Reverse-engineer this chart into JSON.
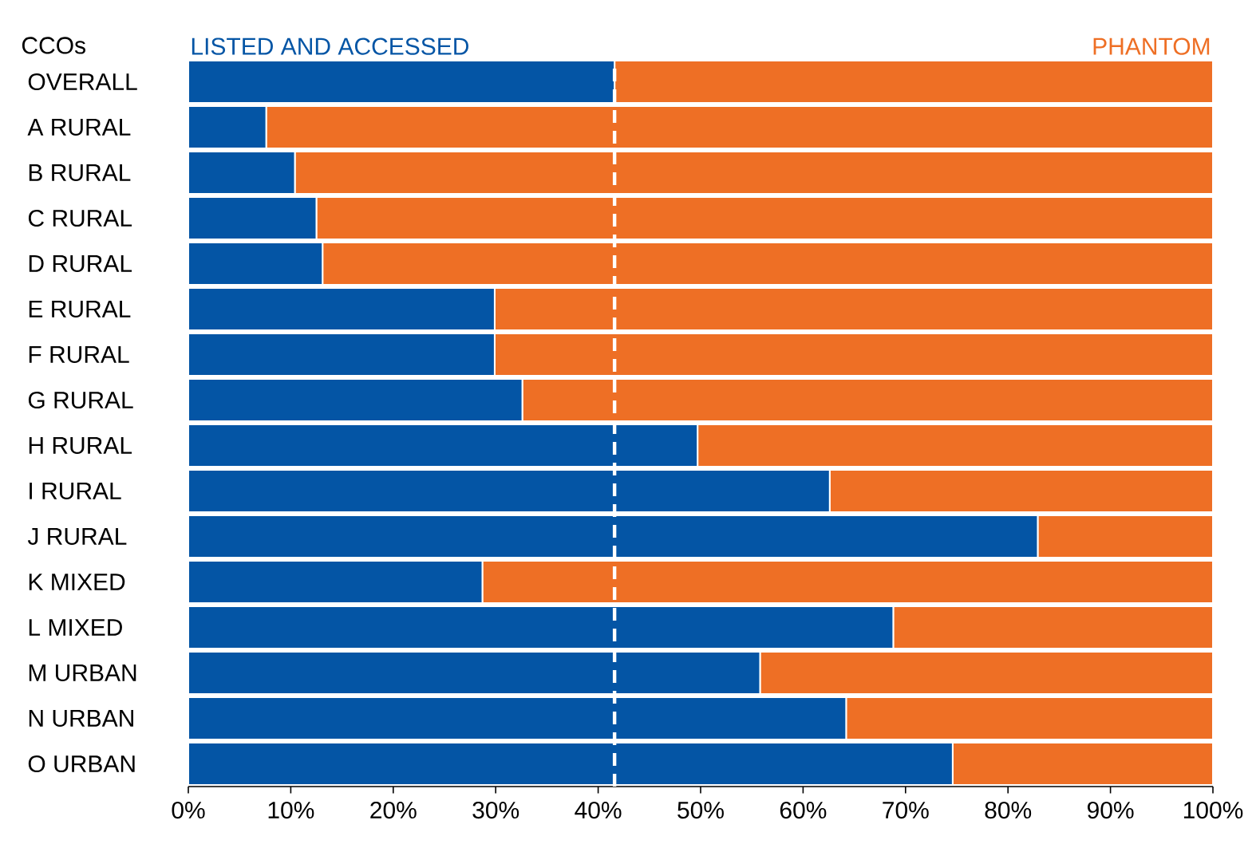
{
  "chart_data": {
    "type": "bar",
    "orientation": "horizontal",
    "stacked": true,
    "ylabel": "CCOs",
    "categories": [
      "OVERALL",
      "A RURAL",
      "B RURAL",
      "C RURAL",
      "D RURAL",
      "E RURAL",
      "F RURAL",
      "G RURAL",
      "H RURAL",
      "I RURAL",
      "J RURAL",
      "K MIXED",
      "L MIXED",
      "M URBAN",
      "N URBAN",
      "O URBAN"
    ],
    "series": [
      {
        "name": "LISTED AND ACCESSED",
        "color": "#0455a5",
        "values": [
          41.6,
          7.6,
          10.4,
          12.5,
          13.1,
          29.9,
          29.9,
          32.6,
          49.7,
          62.6,
          82.9,
          28.7,
          68.8,
          55.8,
          64.2,
          74.6
        ]
      },
      {
        "name": "PHANTOM",
        "color": "#ee6f25",
        "values": [
          58.4,
          92.4,
          89.6,
          87.5,
          86.9,
          70.1,
          70.1,
          67.4,
          50.3,
          37.4,
          17.1,
          71.3,
          31.2,
          44.2,
          35.8,
          25.4
        ]
      }
    ],
    "xlim": [
      0,
      100
    ],
    "xticks": [
      {
        "value": 0,
        "label": "0%"
      },
      {
        "value": 10,
        "label": "10%"
      },
      {
        "value": 20,
        "label": "20%"
      },
      {
        "value": 30,
        "label": "30%"
      },
      {
        "value": 40,
        "label": "40%"
      },
      {
        "value": 50,
        "label": "50%"
      },
      {
        "value": 60,
        "label": "60%"
      },
      {
        "value": 70,
        "label": "70%"
      },
      {
        "value": 80,
        "label": "80%"
      },
      {
        "value": 90,
        "label": "90%"
      },
      {
        "value": 100,
        "label": "100%"
      }
    ],
    "ref_lines": [
      {
        "axis": "x",
        "value": 41.6,
        "color": "#ffffff",
        "line_style": "dashed"
      }
    ]
  }
}
